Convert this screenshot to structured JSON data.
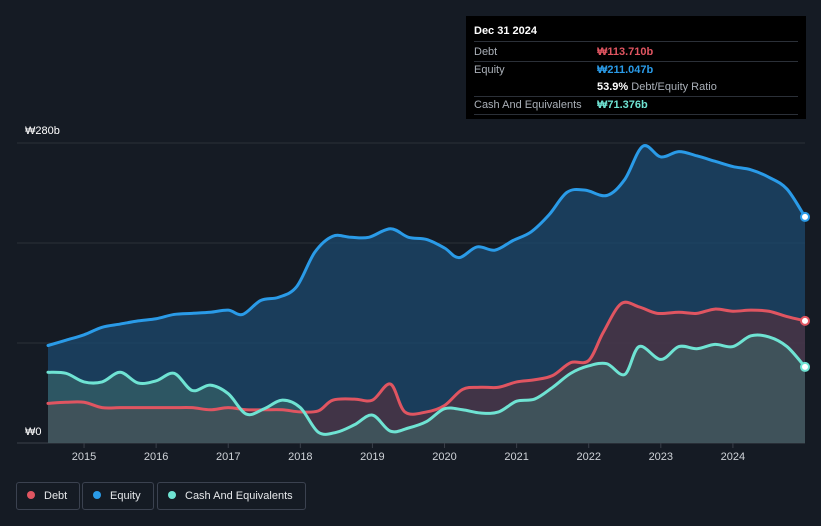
{
  "tooltip": {
    "date": "Dec 31 2024",
    "debt_label": "Debt",
    "debt_value": "₩113.710b",
    "equity_label": "Equity",
    "equity_value": "₩211.047b",
    "ratio_value": "53.9%",
    "ratio_label": "Debt/Equity Ratio",
    "cash_label": "Cash And Equivalents",
    "cash_value": "₩71.376b"
  },
  "legend": {
    "debt": "Debt",
    "equity": "Equity",
    "cash": "Cash And Equivalents"
  },
  "colors": {
    "debt": "#e05561",
    "equity": "#2a9be8",
    "cash": "#6fe3d3",
    "background": "#151b24"
  },
  "chart_data": {
    "type": "area",
    "ylabel_top": "₩280b",
    "ylabel_bottom": "₩0",
    "ylim": [
      0,
      280
    ],
    "xlim": [
      2014.5,
      2025.0
    ],
    "x_ticks": [
      "2015",
      "2016",
      "2017",
      "2018",
      "2019",
      "2020",
      "2021",
      "2022",
      "2023",
      "2024"
    ],
    "grid": true,
    "series": [
      {
        "name": "Equity",
        "points": [
          [
            2014.5,
            91
          ],
          [
            2014.75,
            96
          ],
          [
            2015.0,
            101
          ],
          [
            2015.25,
            108
          ],
          [
            2015.5,
            111
          ],
          [
            2015.75,
            114
          ],
          [
            2016.0,
            116
          ],
          [
            2016.25,
            120
          ],
          [
            2016.5,
            121
          ],
          [
            2016.75,
            122
          ],
          [
            2017.0,
            124
          ],
          [
            2017.2,
            120
          ],
          [
            2017.45,
            133
          ],
          [
            2017.7,
            136
          ],
          [
            2017.95,
            146
          ],
          [
            2018.2,
            178
          ],
          [
            2018.45,
            193
          ],
          [
            2018.7,
            192
          ],
          [
            2018.95,
            192
          ],
          [
            2019.25,
            200
          ],
          [
            2019.5,
            192
          ],
          [
            2019.75,
            190
          ],
          [
            2020.0,
            182
          ],
          [
            2020.2,
            173
          ],
          [
            2020.45,
            183
          ],
          [
            2020.7,
            180
          ],
          [
            2020.95,
            189
          ],
          [
            2021.2,
            197
          ],
          [
            2021.45,
            213
          ],
          [
            2021.7,
            234
          ],
          [
            2021.95,
            236
          ],
          [
            2022.25,
            231
          ],
          [
            2022.5,
            246
          ],
          [
            2022.75,
            277
          ],
          [
            2023.0,
            267
          ],
          [
            2023.25,
            272
          ],
          [
            2023.5,
            268
          ],
          [
            2023.75,
            263
          ],
          [
            2024.0,
            258
          ],
          [
            2024.25,
            255
          ],
          [
            2024.5,
            248
          ],
          [
            2024.75,
            237
          ],
          [
            2025.0,
            211
          ]
        ]
      },
      {
        "name": "Debt",
        "points": [
          [
            2014.5,
            37
          ],
          [
            2014.75,
            38
          ],
          [
            2015.0,
            38
          ],
          [
            2015.25,
            33
          ],
          [
            2015.5,
            33
          ],
          [
            2015.75,
            33
          ],
          [
            2016.0,
            33
          ],
          [
            2016.25,
            33
          ],
          [
            2016.5,
            33
          ],
          [
            2016.75,
            31
          ],
          [
            2017.0,
            33
          ],
          [
            2017.25,
            31
          ],
          [
            2017.5,
            31
          ],
          [
            2017.75,
            31
          ],
          [
            2018.0,
            29
          ],
          [
            2018.25,
            30
          ],
          [
            2018.45,
            40
          ],
          [
            2018.75,
            41
          ],
          [
            2019.0,
            40
          ],
          [
            2019.25,
            55
          ],
          [
            2019.45,
            29
          ],
          [
            2019.75,
            29
          ],
          [
            2020.0,
            35
          ],
          [
            2020.25,
            50
          ],
          [
            2020.5,
            52
          ],
          [
            2020.75,
            52
          ],
          [
            2021.0,
            57
          ],
          [
            2021.25,
            59
          ],
          [
            2021.5,
            63
          ],
          [
            2021.75,
            75
          ],
          [
            2022.0,
            77
          ],
          [
            2022.2,
            103
          ],
          [
            2022.45,
            130
          ],
          [
            2022.7,
            127
          ],
          [
            2022.95,
            121
          ],
          [
            2023.25,
            122
          ],
          [
            2023.5,
            121
          ],
          [
            2023.75,
            125
          ],
          [
            2024.0,
            123
          ],
          [
            2024.25,
            124
          ],
          [
            2024.5,
            123
          ],
          [
            2024.75,
            118
          ],
          [
            2025.0,
            114
          ]
        ]
      },
      {
        "name": "Cash And Equivalents",
        "points": [
          [
            2014.5,
            66
          ],
          [
            2014.75,
            65
          ],
          [
            2015.0,
            57
          ],
          [
            2015.25,
            57
          ],
          [
            2015.5,
            66
          ],
          [
            2015.75,
            56
          ],
          [
            2016.0,
            58
          ],
          [
            2016.25,
            65
          ],
          [
            2016.5,
            49
          ],
          [
            2016.75,
            54
          ],
          [
            2017.0,
            46
          ],
          [
            2017.25,
            27
          ],
          [
            2017.5,
            32
          ],
          [
            2017.75,
            40
          ],
          [
            2018.0,
            33
          ],
          [
            2018.25,
            10
          ],
          [
            2018.5,
            10
          ],
          [
            2018.75,
            17
          ],
          [
            2019.0,
            26
          ],
          [
            2019.25,
            11
          ],
          [
            2019.5,
            14
          ],
          [
            2019.75,
            20
          ],
          [
            2020.0,
            32
          ],
          [
            2020.25,
            31
          ],
          [
            2020.5,
            28
          ],
          [
            2020.75,
            29
          ],
          [
            2021.0,
            39
          ],
          [
            2021.25,
            41
          ],
          [
            2021.5,
            52
          ],
          [
            2021.75,
            65
          ],
          [
            2022.0,
            72
          ],
          [
            2022.25,
            74
          ],
          [
            2022.5,
            64
          ],
          [
            2022.7,
            90
          ],
          [
            2023.0,
            78
          ],
          [
            2023.25,
            90
          ],
          [
            2023.5,
            88
          ],
          [
            2023.75,
            92
          ],
          [
            2024.0,
            90
          ],
          [
            2024.25,
            100
          ],
          [
            2024.5,
            99
          ],
          [
            2024.75,
            90
          ],
          [
            2025.0,
            71
          ]
        ]
      }
    ]
  }
}
